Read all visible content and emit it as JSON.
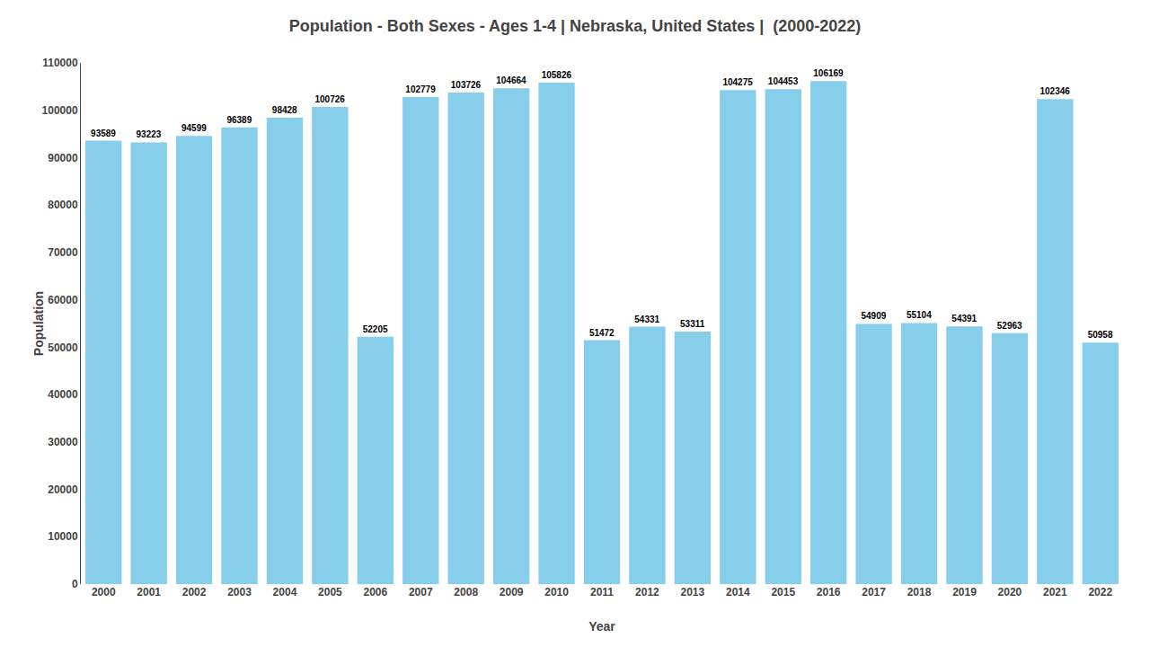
{
  "chart_data": {
    "type": "bar",
    "title": "Population - Both Sexes - Ages 1-4 | Nebraska, United States |  (2000-2022)",
    "xlabel": "Year",
    "ylabel": "Population",
    "categories": [
      "2000",
      "2001",
      "2002",
      "2003",
      "2004",
      "2005",
      "2006",
      "2007",
      "2008",
      "2009",
      "2010",
      "2011",
      "2012",
      "2013",
      "2014",
      "2015",
      "2016",
      "2017",
      "2018",
      "2019",
      "2020",
      "2021",
      "2022"
    ],
    "values": [
      93589,
      93223,
      94599,
      96389,
      98428,
      100726,
      52205,
      102779,
      103726,
      104664,
      105826,
      51472,
      54331,
      53311,
      104275,
      104453,
      106169,
      54909,
      55104,
      54391,
      52963,
      102346,
      50958
    ],
    "color": "#87CEEB",
    "ylim": [
      0,
      110000
    ],
    "yticks": [
      0,
      10000,
      20000,
      30000,
      40000,
      50000,
      60000,
      70000,
      80000,
      90000,
      100000,
      110000
    ],
    "grid": false,
    "data_labels": true
  }
}
